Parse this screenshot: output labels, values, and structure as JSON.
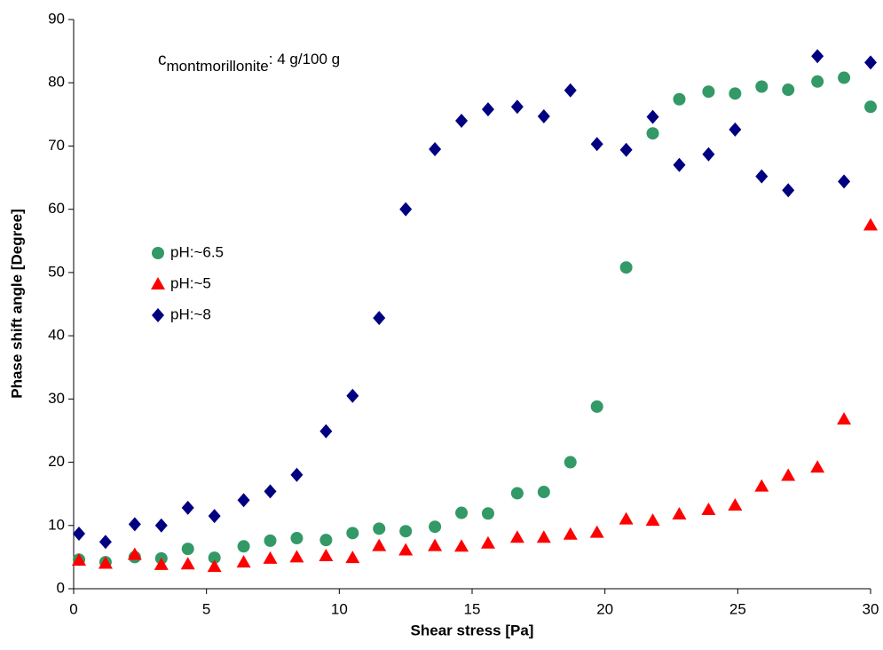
{
  "chart_data": {
    "type": "scatter",
    "annotation": {
      "main": "c",
      "subscript": "montmorillonite",
      "rest": ": 4 g/100 g"
    },
    "x_label": "Shear stress [Pa]",
    "y_label": "Phase shift angle [Degree]",
    "x": [
      0.2,
      1.2,
      2.3,
      3.3,
      4.3,
      5.3,
      6.4,
      7.4,
      8.4,
      9.5,
      10.5,
      11.5,
      12.5,
      13.6,
      14.6,
      15.6,
      16.7,
      17.7,
      18.7,
      19.7,
      20.8,
      21.8,
      22.8,
      23.9,
      24.9,
      25.9,
      26.9,
      28.0,
      29.0,
      30.0
    ],
    "series": [
      {
        "name": "pH:~6.5",
        "color": "#339966",
        "marker": "circle",
        "values": [
          4.6,
          4.2,
          5.0,
          4.8,
          6.3,
          4.9,
          6.7,
          7.6,
          8.0,
          7.7,
          8.8,
          9.5,
          9.1,
          9.8,
          12.0,
          11.9,
          15.1,
          15.3,
          20.0,
          28.8,
          50.8,
          72.0,
          77.4,
          78.6,
          78.3,
          79.4,
          78.9,
          80.2,
          80.8,
          76.2
        ]
      },
      {
        "name": "pH:~5",
        "color": "#ff0000",
        "marker": "triangle",
        "values": [
          4.5,
          4.0,
          5.4,
          3.8,
          3.9,
          3.5,
          4.2,
          4.8,
          5.0,
          5.2,
          4.9,
          6.8,
          6.1,
          6.8,
          6.7,
          7.2,
          8.1,
          8.1,
          8.6,
          8.9,
          11.0,
          10.8,
          11.8,
          12.5,
          13.2,
          16.2,
          17.9,
          19.2,
          26.8,
          57.5
        ]
      },
      {
        "name": "pH:~8",
        "color": "#000080",
        "marker": "diamond",
        "values": [
          8.7,
          7.4,
          10.2,
          10.0,
          12.8,
          11.5,
          14.0,
          15.4,
          18.0,
          24.9,
          30.5,
          42.8,
          60.0,
          69.5,
          74.0,
          75.8,
          76.2,
          74.7,
          78.8,
          70.3,
          69.4,
          74.6,
          67.0,
          68.7,
          72.6,
          65.2,
          63.0,
          84.2,
          64.4,
          83.2
        ]
      }
    ],
    "xlim": [
      0,
      30
    ],
    "xticks": [
      0,
      5,
      10,
      15,
      20,
      25,
      30
    ],
    "ylim": [
      0,
      90
    ],
    "yticks": [
      0,
      10,
      20,
      30,
      40,
      50,
      60,
      70,
      80,
      90
    ],
    "grid": false,
    "legend": "left"
  }
}
